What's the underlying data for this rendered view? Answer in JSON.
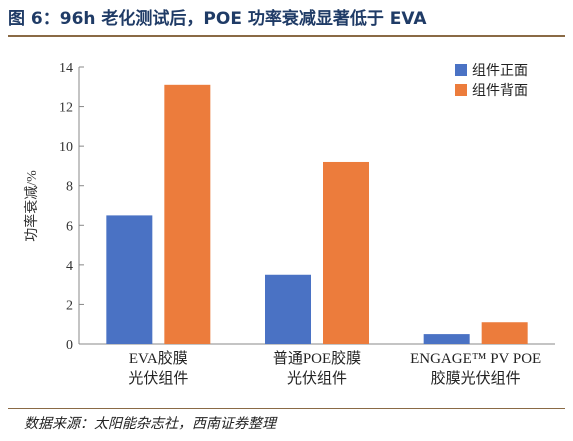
{
  "figure": {
    "title": "图 6：96h 老化测试后，POE 功率衰减显著低于 EVA",
    "source": "数据来源：太阳能杂志社，西南证券整理"
  },
  "chart_data": {
    "type": "bar",
    "categories": [
      [
        "EVA胶膜",
        "光伏组件"
      ],
      [
        "普通POE胶膜",
        "光伏组件"
      ],
      [
        "ENGAGE™ PV POE",
        "胶膜光伏组件"
      ]
    ],
    "series": [
      {
        "name": "组件正面",
        "values": [
          6.5,
          3.5,
          0.5
        ],
        "color": "#4a72c4"
      },
      {
        "name": "组件背面",
        "values": [
          13.1,
          9.2,
          1.1
        ],
        "color": "#ec7c3c"
      }
    ],
    "ylabel": "功率衰减/%",
    "xlabel": "",
    "ylim": [
      0,
      14
    ],
    "yticks": [
      0,
      2,
      4,
      6,
      8,
      10,
      12,
      14
    ],
    "legend": "top-right",
    "grid": false
  }
}
